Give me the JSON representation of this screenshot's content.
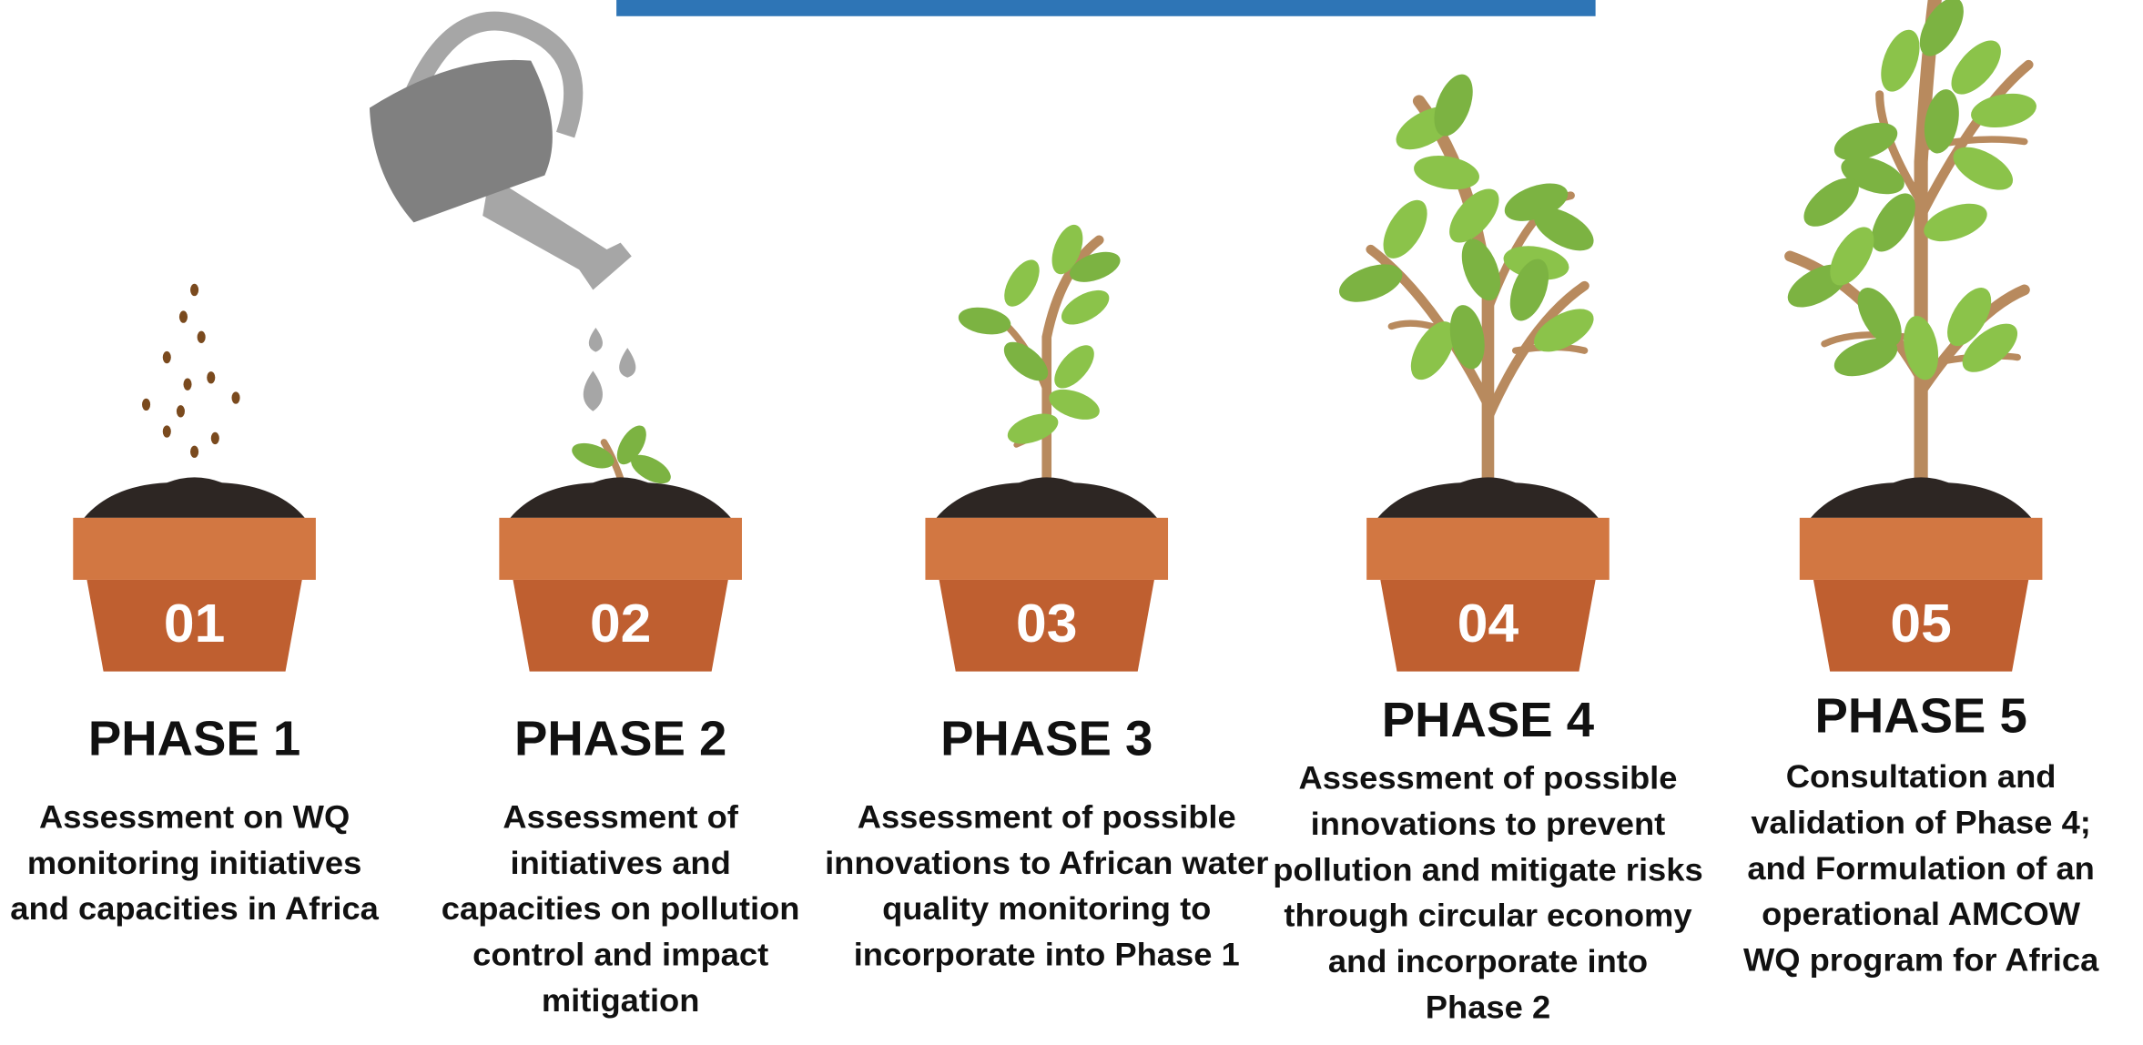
{
  "phases": [
    {
      "number": "01",
      "title": "PHASE 1",
      "lines": [
        "Assessment on WQ",
        "monitoring initiatives",
        "and capacities in Africa"
      ]
    },
    {
      "number": "02",
      "title": "PHASE 2",
      "lines": [
        "Assessment of",
        "initiatives and",
        "capacities on pollution",
        "control and impact",
        "mitigation"
      ]
    },
    {
      "number": "03",
      "title": "PHASE 3",
      "lines": [
        "Assessment of possible",
        "innovations to African water",
        "quality monitoring to",
        "incorporate into Phase 1"
      ]
    },
    {
      "number": "04",
      "title": "PHASE 4",
      "lines": [
        "Assessment of possible",
        "innovations to prevent",
        "pollution and mitigate risks",
        "through circular economy",
        "and incorporate into",
        "Phase 2"
      ]
    },
    {
      "number": "05",
      "title": "PHASE 5",
      "lines": [
        "Consultation and",
        "validation of Phase 4;",
        "and Formulation of an",
        "operational AMCOW",
        "WQ program for Africa"
      ]
    }
  ]
}
